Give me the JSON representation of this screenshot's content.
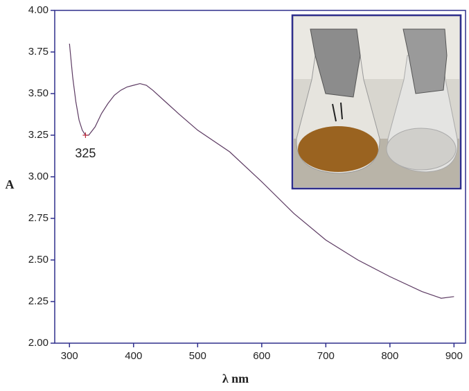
{
  "chart_data": {
    "type": "line",
    "xlabel": "λ nm",
    "ylabel": "A",
    "x": [
      300,
      305,
      310,
      315,
      320,
      325,
      330,
      340,
      350,
      360,
      370,
      380,
      390,
      400,
      410,
      420,
      430,
      450,
      470,
      500,
      550,
      600,
      650,
      700,
      750,
      800,
      850,
      880,
      900
    ],
    "series": [
      {
        "color": "#5c3a62",
        "values": [
          3.8,
          3.6,
          3.45,
          3.34,
          3.28,
          3.25,
          3.25,
          3.3,
          3.38,
          3.44,
          3.49,
          3.52,
          3.54,
          3.55,
          3.56,
          3.55,
          3.52,
          3.45,
          3.38,
          3.28,
          3.15,
          2.97,
          2.78,
          2.62,
          2.5,
          2.4,
          2.31,
          2.27,
          2.28
        ]
      }
    ],
    "annotations": [
      {
        "text": "325",
        "x": 325,
        "y": 3.25
      }
    ],
    "xlim": [
      277,
      918
    ],
    "xticks": [
      300,
      400,
      500,
      600,
      700,
      800,
      900
    ],
    "ylim": [
      2,
      4
    ],
    "yticks": [
      {
        "value": 2,
        "label": "2.00"
      },
      {
        "value": 2.25,
        "label": "2.25"
      },
      {
        "value": 2.5,
        "label": "2.50"
      },
      {
        "value": 2.75,
        "label": "2.75"
      },
      {
        "value": 3,
        "label": "3.00"
      },
      {
        "value": 3.25,
        "label": "3.25"
      },
      {
        "value": 3.5,
        "label": "3.50"
      },
      {
        "value": 3.75,
        "label": "3.75"
      },
      {
        "value": 4,
        "label": "4.00"
      }
    ],
    "axis_color": "#2e2e8c",
    "grid": false
  }
}
